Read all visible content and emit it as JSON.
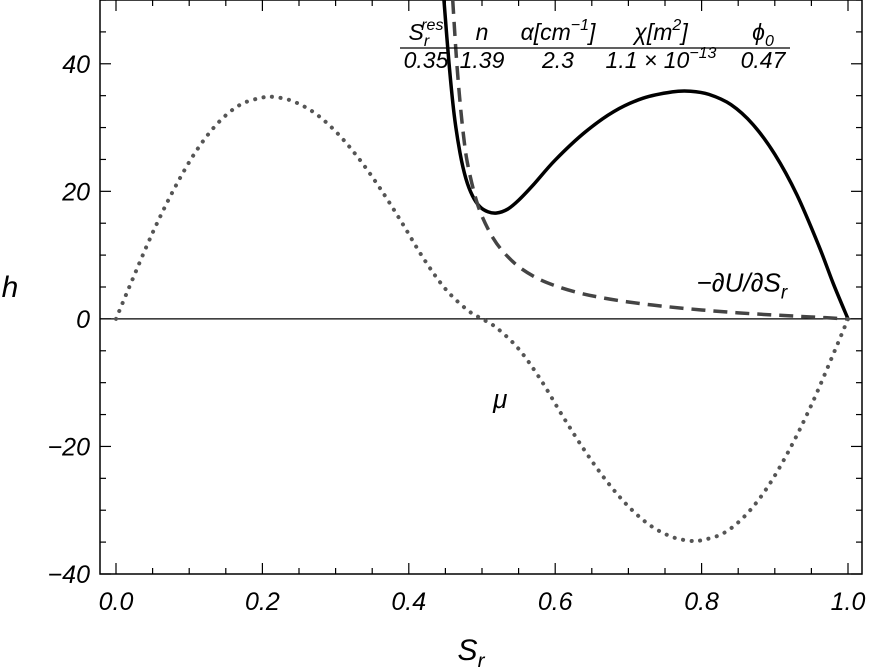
{
  "chart_data": {
    "type": "line",
    "xlabel": "S",
    "xlabel_sub": "r",
    "ylabel": "h",
    "xlim": [
      0.0,
      1.0
    ],
    "ylim": [
      -40,
      50
    ],
    "x_ticks": [
      {
        "value": 0.0,
        "label": "0.0"
      },
      {
        "value": 0.2,
        "label": "0.2"
      },
      {
        "value": 0.4,
        "label": "0.4"
      },
      {
        "value": 0.6,
        "label": "0.6"
      },
      {
        "value": 0.8,
        "label": "0.8"
      },
      {
        "value": 1.0,
        "label": "1.0"
      }
    ],
    "y_ticks": [
      {
        "value": -40,
        "label": "−40"
      },
      {
        "value": -20,
        "label": "−20"
      },
      {
        "value": 0,
        "label": "0"
      },
      {
        "value": 20,
        "label": "20"
      },
      {
        "value": 40,
        "label": "40"
      }
    ],
    "grid": false,
    "series": [
      {
        "style": "solid",
        "color": "#000000",
        "x": [
          0.448,
          0.455,
          0.462,
          0.47,
          0.478,
          0.487,
          0.497,
          0.508,
          0.52,
          0.535,
          0.55,
          0.57,
          0.6,
          0.64,
          0.68,
          0.72,
          0.76,
          0.785,
          0.81,
          0.84,
          0.87,
          0.9,
          0.93,
          0.96,
          0.98,
          1.0
        ],
        "y": [
          50,
          40,
          32,
          26,
          22,
          19.3,
          17.6,
          16.8,
          16.6,
          17.2,
          18.6,
          21,
          24.9,
          29.2,
          32.5,
          34.6,
          35.6,
          35.7,
          35.2,
          33.6,
          30.5,
          25.8,
          19.5,
          11.5,
          5.5,
          0
        ]
      },
      {
        "style": "dashed",
        "color": "#444444",
        "x": [
          0.46,
          0.465,
          0.47,
          0.475,
          0.48,
          0.49,
          0.5,
          0.515,
          0.53,
          0.55,
          0.575,
          0.6,
          0.63,
          0.66,
          0.7,
          0.75,
          0.8,
          0.85,
          0.9,
          0.95,
          1.0
        ],
        "y": [
          50,
          41,
          34,
          28.5,
          24.5,
          19.5,
          16.1,
          12.7,
          10.4,
          8.2,
          6.4,
          5.2,
          4.15,
          3.4,
          2.65,
          1.95,
          1.4,
          0.95,
          0.6,
          0.3,
          0
        ]
      },
      {
        "style": "dotted",
        "color": "#555555",
        "x": [
          0.0,
          0.02,
          0.05,
          0.08,
          0.11,
          0.14,
          0.17,
          0.2,
          0.215,
          0.24,
          0.27,
          0.3,
          0.33,
          0.36,
          0.39,
          0.42,
          0.45,
          0.48,
          0.5,
          0.52,
          0.55,
          0.58,
          0.61,
          0.64,
          0.67,
          0.7,
          0.73,
          0.76,
          0.785,
          0.8,
          0.83,
          0.86,
          0.89,
          0.92,
          0.95,
          0.98,
          1.0
        ],
        "y": [
          0,
          5.5,
          13.5,
          20.5,
          26.4,
          30.8,
          33.6,
          34.7,
          34.8,
          34.2,
          32.4,
          29.4,
          25.4,
          20.6,
          15.2,
          9.5,
          4.7,
          1.4,
          0,
          -1.4,
          -4.7,
          -9.5,
          -15.2,
          -20.6,
          -25.4,
          -29.4,
          -32.4,
          -34.2,
          -34.8,
          -34.7,
          -33.6,
          -30.8,
          -26.4,
          -20.5,
          -13.5,
          -5.5,
          0
        ]
      }
    ],
    "annotations": [
      {
        "text": "−∂U/∂S",
        "sub": "r",
        "x": 0.855,
        "y": 4.3
      },
      {
        "text": "μ",
        "x": 0.525,
        "y": -14
      }
    ],
    "parameter_table": {
      "headers": [
        {
          "base": "S",
          "sub": "r",
          "sup": "res"
        },
        {
          "base": "n"
        },
        {
          "base": "α[cm",
          "sup": "−1",
          "tail": "]"
        },
        {
          "base": "χ[m",
          "sup": "2",
          "tail": "]"
        },
        {
          "base": "ϕ",
          "sub": "0"
        }
      ],
      "values": [
        {
          "base": "0.35"
        },
        {
          "base": "1.39"
        },
        {
          "base": "2.3"
        },
        {
          "base": "1.1 × 10",
          "sup": "−13"
        },
        {
          "base": "0.47"
        }
      ]
    }
  }
}
